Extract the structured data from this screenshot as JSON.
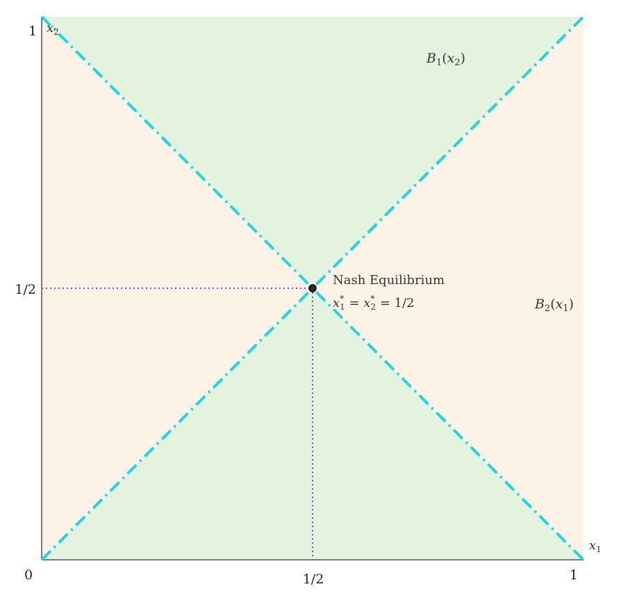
{
  "colors": {
    "green_region": "#e4f3dd",
    "orange_region": "#fdf2e6",
    "best_response_line": "#1ad8e3",
    "guide_line": "#7b3fe0",
    "axis": "#333333",
    "point": "#2b2b2b"
  },
  "chart_data": {
    "type": "line",
    "x_axis": {
      "label": "x",
      "label_sub": "1",
      "range": [
        0,
        1
      ],
      "ticks": [
        "0",
        "1/2",
        "1"
      ]
    },
    "y_axis": {
      "label": "x",
      "label_sub": "2",
      "range": [
        0,
        1
      ],
      "ticks": [
        "1/2",
        "1"
      ]
    },
    "series": [
      {
        "name_main": "B",
        "name_sub": "1",
        "name_arg": "x",
        "name_arg_sub": "2",
        "points": [
          [
            0,
            0
          ],
          [
            1,
            1
          ]
        ],
        "style": "dash-dot"
      },
      {
        "name_main": "B",
        "name_sub": "2",
        "name_arg": "x",
        "name_arg_sub": "1",
        "points": [
          [
            0,
            1
          ],
          [
            1,
            0
          ]
        ],
        "style": "dash-dot"
      }
    ],
    "equilibrium": {
      "x": 0.5,
      "y": 0.5,
      "label": "Nash Equilibrium",
      "formula": "x*1 = x*2 = 1/2"
    },
    "regions": [
      {
        "shape": "top triangle",
        "fill": "green"
      },
      {
        "shape": "bottom triangle",
        "fill": "green"
      },
      {
        "shape": "left triangle",
        "fill": "orange"
      },
      {
        "shape": "right triangle",
        "fill": "orange"
      }
    ]
  }
}
